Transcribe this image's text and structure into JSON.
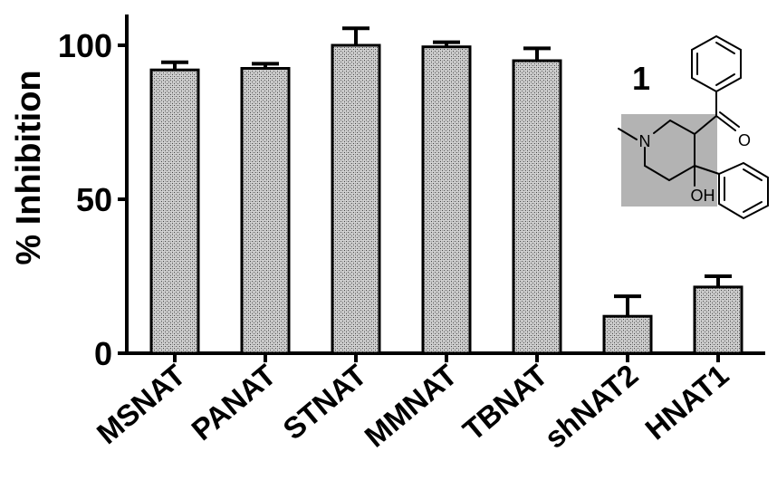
{
  "chart_data": {
    "type": "bar",
    "title": "",
    "xlabel": "",
    "ylabel": "% Inhibition",
    "ylim": [
      0,
      110
    ],
    "yticks": [
      0,
      50,
      100
    ],
    "categories": [
      "MSNAT",
      "PANAT",
      "STNAT",
      "MMNAT",
      "TBNAT",
      "shNAT2",
      "HNAT1"
    ],
    "values": [
      92,
      92.5,
      100,
      99.5,
      95,
      12,
      21.5
    ],
    "errors": [
      2.5,
      1.5,
      5.5,
      1.5,
      4,
      6.5,
      3.5
    ],
    "bar_fill": "stippled grey",
    "grid": false
  },
  "inset": {
    "compound_number": "1",
    "atom_labels": {
      "nitrogen": "N",
      "oxygen": "O",
      "hydroxyl": "OH"
    },
    "highlight_color": "#b3b3b3"
  }
}
